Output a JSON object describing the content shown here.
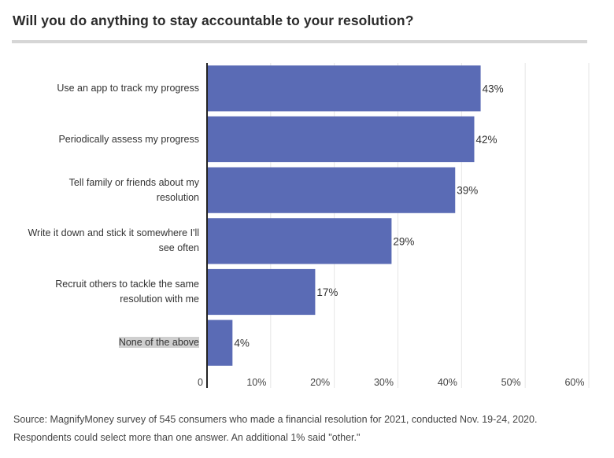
{
  "chart_data": {
    "type": "bar",
    "orientation": "horizontal",
    "title": "Will you do anything to stay accountable to your resolution?",
    "categories": [
      "Use an app to track my progress",
      "Periodically assess my progress",
      "Tell family or friends about my\nresolution",
      "Write it down and stick it somewhere I'll\nsee often",
      "Recruit others to tackle the same\nresolution with me",
      "None of the above"
    ],
    "values": [
      43,
      42,
      39,
      29,
      17,
      4
    ],
    "value_labels": [
      "43%",
      "42%",
      "39%",
      "29%",
      "17%",
      "4%"
    ],
    "xlim": [
      0,
      60
    ],
    "x_ticks": [
      0,
      10,
      20,
      30,
      40,
      50,
      60
    ],
    "x_tick_labels": [
      "0",
      "10%",
      "20%",
      "30%",
      "40%",
      "50%",
      "60%"
    ],
    "xlabel": "",
    "ylabel": "",
    "grid": true,
    "bar_color": "#5a6bb5",
    "highlighted_category_index": 5
  },
  "source": {
    "line1": "Source: MagnifyMoney survey of 545 consumers who made a financial resolution for 2021, conducted Nov. 19-24, 2020.",
    "line2": "Respondents could select more than one answer. An additional 1% said \"other.\""
  }
}
